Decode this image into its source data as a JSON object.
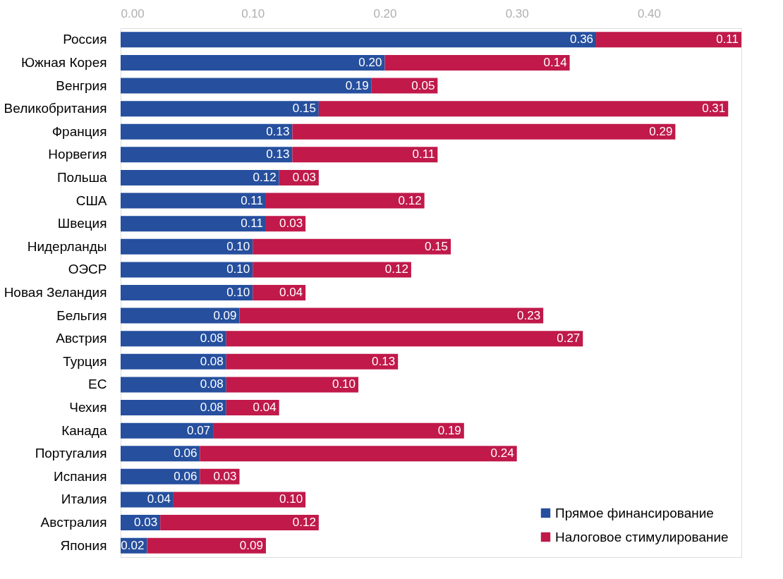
{
  "chart_data": {
    "type": "bar",
    "orientation": "horizontal",
    "stacked": true,
    "grid": false,
    "legend": "bottom right",
    "categories": [
      "Россия",
      "Южная Корея",
      "Венгрия",
      "Великобритания",
      "Франция",
      "Норвегия",
      "Польша",
      "США",
      "Швеция",
      "Нидерланды",
      "ОЭСР",
      "Новая Зеландия",
      "Бельгия",
      "Австрия",
      "Турция",
      "ЕС",
      "Чехия",
      "Канада",
      "Португалия",
      "Испания",
      "Италия",
      "Австралия",
      "Япония"
    ],
    "series": [
      {
        "name": "Прямое финансирование",
        "color": "#264f9e",
        "values": [
          0.36,
          0.2,
          0.19,
          0.15,
          0.13,
          0.13,
          0.12,
          0.11,
          0.11,
          0.1,
          0.1,
          0.1,
          0.09,
          0.08,
          0.08,
          0.08,
          0.08,
          0.07,
          0.06,
          0.06,
          0.04,
          0.03,
          0.02
        ],
        "value_labels": [
          "0.36",
          "0.20",
          "0.19",
          "0.15",
          "0.13",
          "0.13",
          "0.12",
          "0.11",
          "0.11",
          "0.10",
          "0.10",
          "0.10",
          "0.09",
          "0.08",
          "0.08",
          "0.08",
          "0.08",
          "0.07",
          "0.06",
          "0.06",
          "0.04",
          "0.03",
          "0.02"
        ]
      },
      {
        "name": "Налоговое стимулирование",
        "color": "#c0194a",
        "values": [
          0.11,
          0.14,
          0.05,
          0.31,
          0.29,
          0.11,
          0.03,
          0.12,
          0.03,
          0.15,
          0.12,
          0.04,
          0.23,
          0.27,
          0.13,
          0.1,
          0.04,
          0.19,
          0.24,
          0.03,
          0.1,
          0.12,
          0.09
        ],
        "value_labels": [
          "0.11",
          "0.14",
          "0.05",
          "0.31",
          "0.29",
          "0.11",
          "0.03",
          "0.12",
          "0.03",
          "0.15",
          "0.12",
          "0.04",
          "0.23",
          "0.27",
          "0.13",
          "0.10",
          "0.04",
          "0.19",
          "0.24",
          "0.03",
          "0.10",
          "0.12",
          "0.09"
        ]
      }
    ],
    "xlim": [
      0,
      0.47
    ],
    "xticks": [
      {
        "value": 0,
        "label": "0.00"
      },
      {
        "value": 0.1,
        "label": "0.10"
      },
      {
        "value": 0.2,
        "label": "0.20"
      },
      {
        "value": 0.3,
        "label": "0.30"
      },
      {
        "value": 0.4,
        "label": "0.40"
      }
    ]
  }
}
